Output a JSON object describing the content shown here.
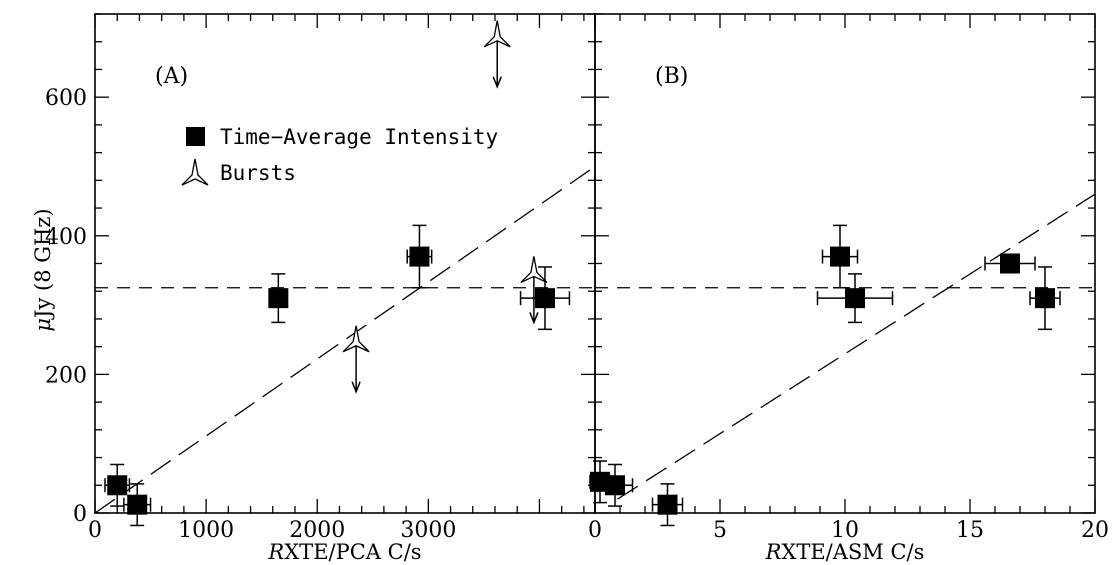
{
  "ylabel_prefix": "μ",
  "ylabel_rest": "Jy (8 GHz)",
  "legend": {
    "avg_label": "Time−Average Intensity",
    "burst_label": "Bursts"
  },
  "chart_data": [
    {
      "type": "scatter",
      "panel_label": "(A)",
      "xlabel_italic": "R",
      "xlabel_rest": "XTE/PCA C/s",
      "ylabel": "μJy (8 GHz)",
      "xlim": [
        0,
        4500
      ],
      "ylim": [
        0,
        720
      ],
      "xticks": [
        0,
        1000,
        2000,
        3000
      ],
      "yticks": [
        0,
        200,
        400,
        600
      ],
      "xtick_labels": [
        "0",
        "1000",
        "2000",
        "3000"
      ],
      "ytick_labels": [
        "0",
        "200",
        "400",
        "600"
      ],
      "series": [
        {
          "name": "Time−Average Intensity",
          "marker": "square",
          "points": [
            {
              "x": 200,
              "y": 40,
              "xerr": 110,
              "yerr": 30
            },
            {
              "x": 380,
              "y": 12,
              "xerr": 120,
              "yerr": 30
            },
            {
              "x": 1650,
              "y": 310,
              "xerr": 60,
              "yerr": 35
            },
            {
              "x": 2920,
              "y": 370,
              "xerr": 110,
              "yerr": 45
            },
            {
              "x": 4050,
              "y": 310,
              "xerr": 220,
              "yerr": 45
            }
          ]
        },
        {
          "name": "Bursts",
          "marker": "burst",
          "upper_limit": true,
          "points": [
            {
              "x": 2350,
              "y": 250
            },
            {
              "x": 3620,
              "y": 690
            },
            {
              "x": 3950,
              "y": 350
            }
          ]
        }
      ],
      "fit_line": {
        "x": [
          0,
          4500
        ],
        "y": [
          0,
          500
        ],
        "style": "long-dash"
      },
      "mean_line": {
        "y": 325,
        "style": "dash"
      }
    },
    {
      "type": "scatter",
      "panel_label": "(B)",
      "xlabel_italic": "R",
      "xlabel_rest": "XTE/ASM C/s",
      "xlim": [
        0,
        20
      ],
      "ylim": [
        0,
        720
      ],
      "xticks": [
        0,
        5,
        10,
        15,
        20
      ],
      "xtick_labels": [
        "0",
        "5",
        "10",
        "15",
        "20"
      ],
      "series": [
        {
          "name": "Time−Average Intensity",
          "marker": "square",
          "points": [
            {
              "x": 0.2,
              "y": 45,
              "xerr": 0.4,
              "yerr": 30
            },
            {
              "x": 0.8,
              "y": 40,
              "xerr": 0.7,
              "yerr": 30
            },
            {
              "x": 2.9,
              "y": 12,
              "xerr": 0.6,
              "yerr": 30
            },
            {
              "x": 9.8,
              "y": 370,
              "xerr": 0.7,
              "yerr": 45
            },
            {
              "x": 10.4,
              "y": 310,
              "xerr": 1.5,
              "yerr": 35
            },
            {
              "x": 16.6,
              "y": 360,
              "xerr": 1.0,
              "yerr": 0
            },
            {
              "x": 18.0,
              "y": 310,
              "xerr": 0.6,
              "yerr": 45
            }
          ]
        }
      ],
      "fit_line": {
        "x": [
          0.9,
          20
        ],
        "y": [
          20,
          460
        ],
        "style": "long-dash"
      },
      "mean_line": {
        "y": 325,
        "style": "dash"
      }
    }
  ]
}
